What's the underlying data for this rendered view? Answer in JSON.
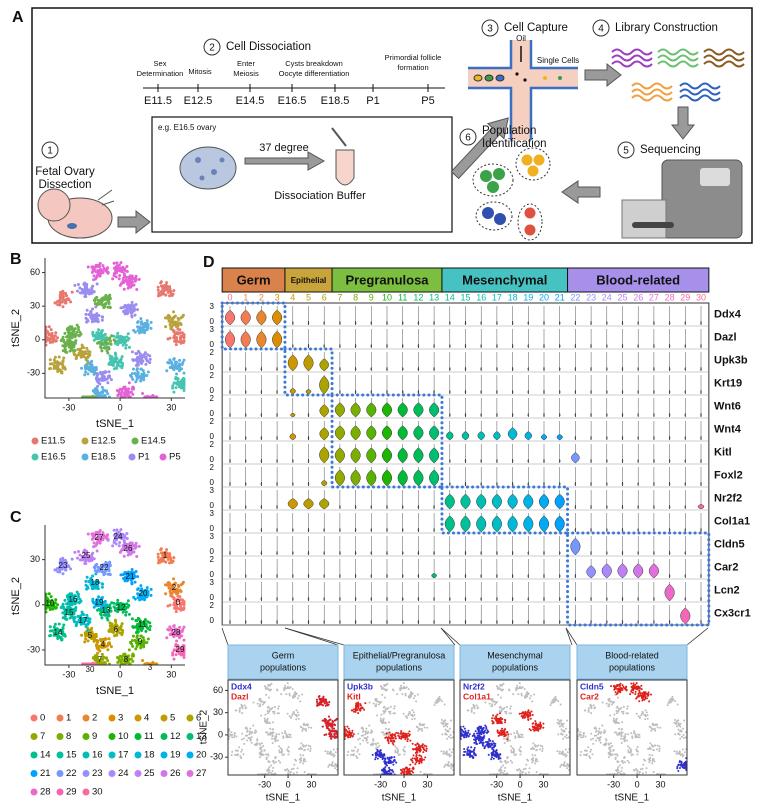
{
  "panel_a": {
    "label": "A",
    "steps": [
      {
        "number": "1",
        "title": [
          "Fetal Ovary",
          "Dissection"
        ]
      },
      {
        "number": "2",
        "title": [
          "Cell Dissociation"
        ]
      },
      {
        "number": "3",
        "title": [
          "Cell Capture"
        ]
      },
      {
        "number": "4",
        "title": [
          "Library Construction"
        ]
      },
      {
        "number": "5",
        "title": [
          "Sequencing"
        ]
      },
      {
        "number": "6",
        "title": [
          "Population",
          "Identification"
        ]
      }
    ],
    "events": [
      [
        "Sex",
        "Determination"
      ],
      [
        "Mitosis"
      ],
      [
        "Enter",
        "Meiosis"
      ],
      [
        "Cysts breakdown",
        "Oocyte differentiation"
      ],
      [
        "Primordial follicle",
        "formation"
      ]
    ],
    "timepoints": [
      "E11.5",
      "E12.5",
      "E14.5",
      "E16.5",
      "E18.5",
      "P1",
      "P5"
    ],
    "example": "e.g. E16.5 ovary",
    "temperature": "37 degree",
    "buffer": "Dissociation Buffer",
    "oil": "Oil",
    "single_cells": "Single Cells"
  },
  "panel_b": {
    "label": "B",
    "xlabel": "tSNE_1",
    "ylabel": "tSNE_2",
    "xlim": [
      -44,
      38
    ],
    "ylim": [
      -52,
      73
    ],
    "xticks": [
      -30,
      0,
      30
    ],
    "yticks": [
      -30,
      0,
      30,
      60
    ],
    "legend": [
      {
        "name": "E11.5",
        "color": "#e8786f"
      },
      {
        "name": "E12.5",
        "color": "#b8a23a"
      },
      {
        "name": "E14.5",
        "color": "#6ab04c"
      },
      {
        "name": "E16.5",
        "color": "#45c4b0"
      },
      {
        "name": "E18.5",
        "color": "#5ab0e0"
      },
      {
        "name": "P1",
        "color": "#9b8cf0"
      },
      {
        "name": "P5",
        "color": "#e462d6"
      }
    ]
  },
  "panel_c": {
    "label": "C",
    "xlabel": "tSNE_1",
    "ylabel": "tSNE_2",
    "xlim": [
      -44,
      38
    ],
    "ylim": [
      -40,
      53
    ],
    "xticks": [
      -30,
      0,
      30
    ],
    "yticks": [
      -30,
      0,
      30
    ],
    "clusters": [
      {
        "name": "0",
        "color": "#F8766D"
      },
      {
        "name": "1",
        "color": "#F27D52"
      },
      {
        "name": "2",
        "color": "#E8852E"
      },
      {
        "name": "3",
        "color": "#DC8E00"
      },
      {
        "name": "4",
        "color": "#CE9600"
      },
      {
        "name": "5",
        "color": "#BE9C00"
      },
      {
        "name": "6",
        "color": "#ABA300"
      },
      {
        "name": "7",
        "color": "#94A900"
      },
      {
        "name": "8",
        "color": "#7AAE00"
      },
      {
        "name": "9",
        "color": "#58B300"
      },
      {
        "name": "10",
        "color": "#1CB600"
      },
      {
        "name": "11",
        "color": "#00BA38"
      },
      {
        "name": "12",
        "color": "#00BC58"
      },
      {
        "name": "13",
        "color": "#00BE71"
      },
      {
        "name": "14",
        "color": "#00C089"
      },
      {
        "name": "15",
        "color": "#00C09E"
      },
      {
        "name": "16",
        "color": "#00BFB2"
      },
      {
        "name": "17",
        "color": "#00BDC4"
      },
      {
        "name": "18",
        "color": "#00B9D6"
      },
      {
        "name": "19",
        "color": "#00B3E6"
      },
      {
        "name": "20",
        "color": "#00ABF4"
      },
      {
        "name": "21",
        "color": "#00A2FD"
      },
      {
        "name": "22",
        "color": "#7697FF"
      },
      {
        "name": "23",
        "color": "#9590FF"
      },
      {
        "name": "24",
        "color": "#AD88FC"
      },
      {
        "name": "25",
        "color": "#C17FF4"
      },
      {
        "name": "26",
        "color": "#D277E9"
      },
      {
        "name": "27",
        "color": "#E170DB"
      },
      {
        "name": "28",
        "color": "#EC69C9"
      },
      {
        "name": "29",
        "color": "#F566B5"
      },
      {
        "name": "30",
        "color": "#FA689E"
      }
    ]
  },
  "panel_d": {
    "label": "D",
    "groups": [
      {
        "name": "Germ",
        "color": "#d9824b"
      },
      {
        "name": "Epithelial",
        "color": "#c9a43a"
      },
      {
        "name": "Pregranulosa",
        "color": "#7cbe3f"
      },
      {
        "name": "Mesenchymal",
        "color": "#47c2c2"
      },
      {
        "name": "Blood-related",
        "color": "#a690ea"
      }
    ],
    "genes": [
      {
        "name": "Ddx4",
        "ylim": [
          0,
          3
        ],
        "levels": [
          2.2,
          2.2,
          2.2,
          2.2,
          0,
          0,
          0,
          0,
          0,
          0,
          0,
          0,
          0,
          0,
          0,
          0,
          0,
          0,
          0,
          0,
          0,
          0,
          0,
          0,
          0,
          0,
          0,
          0,
          0,
          0,
          0
        ]
      },
      {
        "name": "Dazl",
        "ylim": [
          0,
          3
        ],
        "levels": [
          2.5,
          2.5,
          2.5,
          2.5,
          0,
          0,
          0,
          0,
          0,
          0,
          0,
          0,
          0,
          0,
          0,
          0,
          0,
          0,
          0,
          0,
          0,
          0,
          0,
          0,
          0,
          0,
          0,
          0,
          0,
          0,
          0
        ]
      },
      {
        "name": "Upk3b",
        "ylim": [
          0,
          2
        ],
        "levels": [
          0,
          0,
          0,
          0,
          1.6,
          1.6,
          1.2,
          0,
          0,
          0,
          0,
          0,
          0,
          0,
          0,
          0,
          0,
          0,
          0,
          0,
          0,
          0,
          0,
          0,
          0,
          0,
          0,
          0,
          0,
          0,
          0
        ]
      },
      {
        "name": "Krt19",
        "ylim": [
          0,
          2
        ],
        "levels": [
          0,
          0,
          0,
          0,
          0.5,
          0.4,
          1.8,
          0,
          0,
          0,
          0,
          0,
          0,
          0,
          0,
          0,
          0,
          0,
          0,
          0,
          0,
          0,
          0,
          0,
          0,
          0,
          0,
          0,
          0,
          0,
          0
        ]
      },
      {
        "name": "Wnt6",
        "ylim": [
          0,
          2
        ],
        "levels": [
          0,
          0,
          0,
          0,
          0.3,
          0,
          1.2,
          1.4,
          1.4,
          1.4,
          1.4,
          1.4,
          1.4,
          1.4,
          0,
          0,
          0,
          0,
          0,
          0,
          0,
          0,
          0,
          0,
          0,
          0,
          0,
          0,
          0,
          0,
          0
        ]
      },
      {
        "name": "Wnt4",
        "ylim": [
          0,
          2
        ],
        "levels": [
          0,
          0,
          0,
          0,
          0.6,
          0,
          1.2,
          1.4,
          1.4,
          1.4,
          1.4,
          1.4,
          1.4,
          1.4,
          0.8,
          0.8,
          0.8,
          0.8,
          1.2,
          0.8,
          0.5,
          0.5,
          0,
          0,
          0,
          0,
          0,
          0,
          0,
          0,
          0
        ]
      },
      {
        "name": "Kitl",
        "ylim": [
          0,
          2
        ],
        "levels": [
          0,
          0,
          0,
          0,
          0,
          0,
          1.6,
          1.5,
          1.5,
          1.5,
          1.5,
          1.5,
          1.5,
          1.5,
          0,
          0,
          0,
          0,
          0,
          0,
          0,
          0,
          1,
          0,
          0,
          0,
          0,
          0,
          0,
          0,
          0
        ]
      },
      {
        "name": "Foxl2",
        "ylim": [
          0,
          2
        ],
        "levels": [
          0,
          0,
          0,
          0,
          0,
          0,
          0.5,
          1.6,
          1.6,
          1.6,
          1.6,
          1.6,
          1.6,
          1.6,
          0,
          0,
          0,
          0,
          0,
          0,
          0,
          0,
          0,
          0,
          0,
          0,
          0,
          0,
          0,
          0,
          0
        ]
      },
      {
        "name": "Nr2f2",
        "ylim": [
          0,
          3
        ],
        "levels": [
          0,
          0,
          0,
          0,
          1.5,
          1.5,
          1.5,
          0,
          0,
          0,
          0,
          0,
          0,
          0,
          2.2,
          2.2,
          2.2,
          2.2,
          2.2,
          2.2,
          2.2,
          2.2,
          0,
          0,
          0,
          0,
          0,
          0,
          0,
          0,
          0.6
        ]
      },
      {
        "name": "Col1a1",
        "ylim": [
          0,
          3
        ],
        "levels": [
          0,
          0,
          0,
          0,
          0,
          0,
          0,
          0,
          0,
          0,
          0,
          0,
          0,
          0,
          2.4,
          2.4,
          2.4,
          2.4,
          2.4,
          2.4,
          2.4,
          2.4,
          0,
          0,
          0,
          0,
          0,
          0,
          0,
          0,
          0
        ]
      },
      {
        "name": "Cldn5",
        "ylim": [
          0,
          3
        ],
        "levels": [
          0,
          0,
          0,
          0,
          0,
          0,
          0,
          0,
          0,
          0,
          0,
          0,
          0,
          0,
          0,
          0,
          0,
          0,
          0,
          0,
          0,
          0,
          2.5,
          0,
          0,
          0,
          0,
          0,
          0,
          0,
          0
        ]
      },
      {
        "name": "Car2",
        "ylim": [
          0,
          2
        ],
        "levels": [
          0,
          0,
          0,
          0,
          0,
          0,
          0,
          0,
          0,
          0,
          0,
          0,
          0,
          0.4,
          0,
          0,
          0,
          0,
          0,
          0,
          0,
          0,
          0,
          1.2,
          1.4,
          1.4,
          1.4,
          1.4,
          0,
          0,
          0
        ]
      },
      {
        "name": "Lcn2",
        "ylim": [
          0,
          3
        ],
        "levels": [
          0,
          0,
          0,
          0,
          0,
          0,
          0,
          0,
          0,
          0,
          0,
          0,
          0,
          0,
          0,
          0,
          0,
          0,
          0,
          0,
          0,
          0,
          0,
          0,
          0,
          0,
          0,
          0,
          2.5,
          0,
          0
        ]
      },
      {
        "name": "Cx3cr1",
        "ylim": [
          0,
          2
        ],
        "levels": [
          0,
          0,
          0,
          0,
          0,
          0,
          0,
          0,
          0,
          0,
          0,
          0,
          0,
          0,
          0,
          0,
          0,
          0,
          0,
          0,
          0,
          0,
          0,
          0,
          0,
          0,
          0,
          0,
          0,
          1.6,
          0
        ]
      }
    ],
    "feature_plots": {
      "xlabel": "tSNE_1",
      "ylabel": "tSNE_2",
      "xlim": [
        -77,
        64
      ],
      "ylim": [
        -54,
        74
      ],
      "xticks": [
        -30,
        0,
        30
      ],
      "yticks": [
        -30,
        0,
        30,
        60
      ],
      "panels": [
        {
          "title": [
            "Germ",
            "populations"
          ],
          "genes": [
            {
              "name": "Ddx4",
              "color": "#2f2fd0"
            },
            {
              "name": "Dazl",
              "color": "#e0201c"
            }
          ]
        },
        {
          "title": [
            "Epithelial/Pregranulosa",
            "populations"
          ],
          "genes": [
            {
              "name": "Upk3b",
              "color": "#2f2fd0"
            },
            {
              "name": "Kitl",
              "color": "#e0201c"
            }
          ]
        },
        {
          "title": [
            "Mesenchymal",
            "populations"
          ],
          "genes": [
            {
              "name": "Nr2f2",
              "color": "#2f2fd0"
            },
            {
              "name": "Col1a1",
              "color": "#e0201c"
            }
          ]
        },
        {
          "title": [
            "Blood-related",
            "populations"
          ],
          "genes": [
            {
              "name": "Cldn5",
              "color": "#2f2fd0"
            },
            {
              "name": "Car2",
              "color": "#e0201c"
            }
          ]
        }
      ]
    }
  }
}
